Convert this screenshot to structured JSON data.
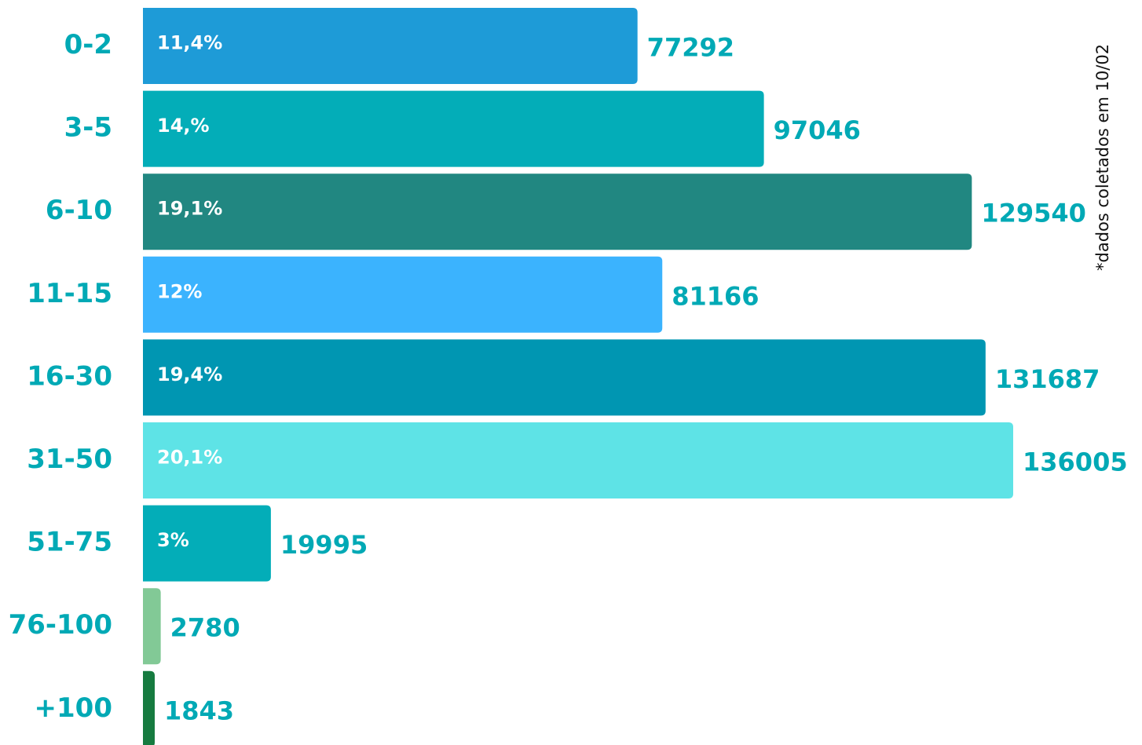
{
  "chart_data": {
    "type": "bar",
    "orientation": "horizontal",
    "categories": [
      "0-2",
      "3-5",
      "6-10",
      "11-15",
      "16-30",
      "31-50",
      "51-75",
      "76-100",
      "+100"
    ],
    "values": [
      77292,
      97046,
      129540,
      81166,
      131687,
      136005,
      19995,
      2780,
      1843
    ],
    "colors": [
      "#1e9bd7",
      "#03adb8",
      "#218781",
      "#3bb3fe",
      "#0096b2",
      "#5ee3e6",
      "#03adb8",
      "#82c996",
      "#167b40"
    ],
    "annotations": [
      "11,4%",
      "14,%",
      "19,1%",
      "12%",
      "19,4%",
      "20,1%",
      "3%",
      null,
      null
    ],
    "note": "*dados coletados em 10/02"
  }
}
